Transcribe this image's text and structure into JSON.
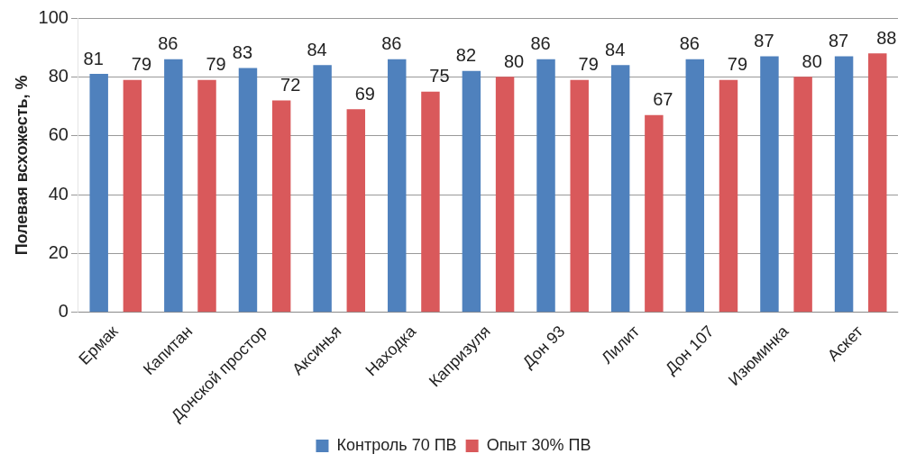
{
  "chart_data": {
    "type": "bar",
    "ylabel": "Полевая всхожесть, %",
    "categories": [
      "Ермак",
      "Капитан",
      "Донской простор",
      "Аксинья",
      "Находка",
      "Капризуля",
      "Дон 93",
      "Лилит",
      "Дон 107",
      "Изюминка",
      "Аскет"
    ],
    "series": [
      {
        "name": "Контроль 70 ПВ",
        "color": "#4f81bd",
        "values": [
          81,
          86,
          83,
          84,
          86,
          82,
          86,
          84,
          86,
          87,
          87
        ]
      },
      {
        "name": "Опыт 30% ПВ",
        "color": "#d9595b",
        "values": [
          79,
          79,
          72,
          69,
          75,
          80,
          79,
          67,
          79,
          80,
          88
        ]
      }
    ],
    "ylim": [
      0,
      100
    ],
    "yticks": [
      0,
      20,
      40,
      60,
      80,
      100
    ],
    "grid": "y",
    "legend": "bottom",
    "data_labels": true
  }
}
